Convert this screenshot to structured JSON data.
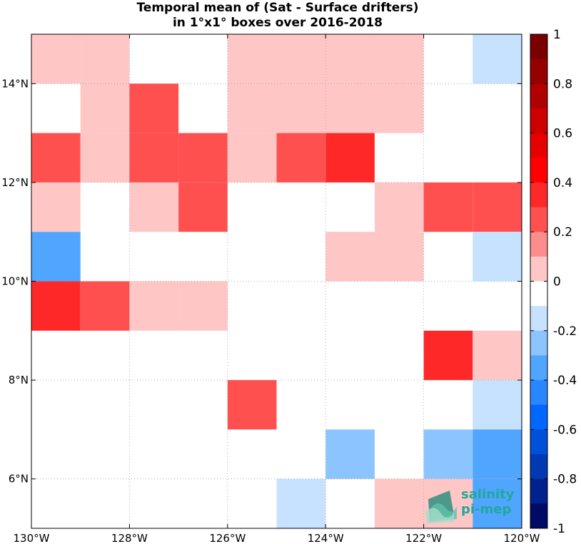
{
  "title": {
    "line1": "Temporal mean of (Sat - Surface drifters)",
    "line2": "in 1°x1° boxes over 2016-2018"
  },
  "logo": {
    "line1": "salinity",
    "line2": "pi-mep",
    "icon": "salinity-waves-logo-icon"
  },
  "chart_data": {
    "type": "heatmap",
    "x_range": [
      -130,
      -120
    ],
    "y_range": [
      5,
      15
    ],
    "x_ticks": [
      "130°W",
      "128°W",
      "126°W",
      "124°W",
      "122°W",
      "120°W"
    ],
    "y_ticks": [
      "6°N",
      "8°N",
      "10°N",
      "12°N",
      "14°N"
    ],
    "grid": true,
    "colorbar": {
      "min": -1,
      "max": 1,
      "levels": 20,
      "ticks": [
        "1",
        "0.8",
        "0.6",
        "0.4",
        "0.2",
        "0",
        "-0.2",
        "-0.4",
        "-0.6",
        "-0.8",
        "-1"
      ],
      "colors": [
        "#7a0000",
        "#950000",
        "#b00000",
        "#cc0000",
        "#e60000",
        "#ff0000",
        "#ff2828",
        "#ff5050",
        "#ff8c8c",
        "#ffc6c6",
        "#ffffff",
        "#c6e2ff",
        "#8cc4ff",
        "#50a5ff",
        "#2886ff",
        "#0067ff",
        "#0050d9",
        "#0039b3",
        "#00228c",
        "#000b66"
      ]
    },
    "cells": [
      {
        "lon": -130,
        "lat": 14,
        "value": 0.1
      },
      {
        "lon": -129,
        "lat": 14,
        "value": 0.1
      },
      {
        "lon": -126,
        "lat": 14,
        "value": 0.1
      },
      {
        "lon": -125,
        "lat": 14,
        "value": 0.1
      },
      {
        "lon": -124,
        "lat": 14,
        "value": 0.1
      },
      {
        "lon": -123,
        "lat": 14,
        "value": 0.1
      },
      {
        "lon": -121,
        "lat": 14,
        "value": -0.1
      },
      {
        "lon": -129,
        "lat": 13,
        "value": 0.1
      },
      {
        "lon": -128,
        "lat": 13,
        "value": 0.3
      },
      {
        "lon": -126,
        "lat": 13,
        "value": 0.1
      },
      {
        "lon": -125,
        "lat": 13,
        "value": 0.1
      },
      {
        "lon": -124,
        "lat": 13,
        "value": 0.1
      },
      {
        "lon": -123,
        "lat": 13,
        "value": 0.1
      },
      {
        "lon": -130,
        "lat": 12,
        "value": 0.3
      },
      {
        "lon": -129,
        "lat": 12,
        "value": 0.1
      },
      {
        "lon": -128,
        "lat": 12,
        "value": 0.3
      },
      {
        "lon": -127,
        "lat": 12,
        "value": 0.3
      },
      {
        "lon": -126,
        "lat": 12,
        "value": 0.1
      },
      {
        "lon": -125,
        "lat": 12,
        "value": 0.3
      },
      {
        "lon": -124,
        "lat": 12,
        "value": 0.4
      },
      {
        "lon": -130,
        "lat": 11,
        "value": 0.1
      },
      {
        "lon": -128,
        "lat": 11,
        "value": 0.1
      },
      {
        "lon": -127,
        "lat": 11,
        "value": 0.3
      },
      {
        "lon": -123,
        "lat": 11,
        "value": 0.1
      },
      {
        "lon": -122,
        "lat": 11,
        "value": 0.3
      },
      {
        "lon": -121,
        "lat": 11,
        "value": 0.3
      },
      {
        "lon": -130,
        "lat": 10,
        "value": -0.35
      },
      {
        "lon": -124,
        "lat": 10,
        "value": 0.1
      },
      {
        "lon": -123,
        "lat": 10,
        "value": 0.1
      },
      {
        "lon": -121,
        "lat": 10,
        "value": -0.1
      },
      {
        "lon": -130,
        "lat": 9,
        "value": 0.4
      },
      {
        "lon": -129,
        "lat": 9,
        "value": 0.3
      },
      {
        "lon": -128,
        "lat": 9,
        "value": 0.1
      },
      {
        "lon": -127,
        "lat": 9,
        "value": 0.1
      },
      {
        "lon": -122,
        "lat": 8,
        "value": 0.4
      },
      {
        "lon": -121,
        "lat": 8,
        "value": 0.1
      },
      {
        "lon": -126,
        "lat": 7,
        "value": 0.3
      },
      {
        "lon": -121,
        "lat": 7,
        "value": -0.1
      },
      {
        "lon": -124,
        "lat": 6,
        "value": -0.25
      },
      {
        "lon": -122,
        "lat": 6,
        "value": -0.25
      },
      {
        "lon": -121,
        "lat": 6,
        "value": -0.35
      },
      {
        "lon": -125,
        "lat": 5,
        "value": -0.1
      },
      {
        "lon": -123,
        "lat": 5,
        "value": 0.1
      },
      {
        "lon": -122,
        "lat": 5,
        "value": 0.1
      },
      {
        "lon": -121,
        "lat": 5,
        "value": -0.35
      }
    ]
  }
}
